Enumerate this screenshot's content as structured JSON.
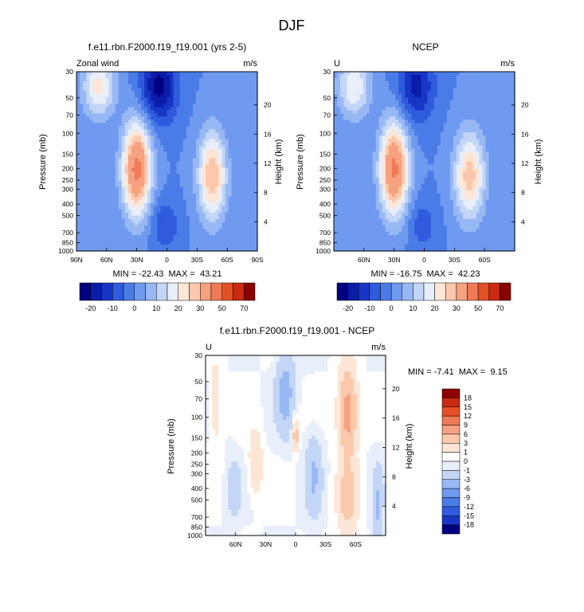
{
  "figure_title": "DJF",
  "chart_data": [
    {
      "type": "heatmap",
      "title": "f.e11.rbn.F2000.f19_f19.001 (yrs 2-5)",
      "corner_left": "Zonal wind",
      "corner_right": "m/s",
      "ylabel": "Pressure (mb)",
      "ylabel_right": "Height (km)",
      "x_ticks": [
        "90N",
        "60N",
        "30N",
        "0",
        "30S",
        "60S",
        "90S"
      ],
      "x_tick_values": [
        90,
        60,
        30,
        0,
        -30,
        -60,
        -90
      ],
      "xlim": [
        90,
        -90
      ],
      "y_ticks": [
        "30",
        "50",
        "70",
        "100",
        "150",
        "200",
        "250",
        "300",
        "400",
        "500",
        "700",
        "850",
        "1000"
      ],
      "y_tick_values": [
        30,
        50,
        70,
        100,
        150,
        200,
        250,
        300,
        400,
        500,
        700,
        850,
        1000
      ],
      "ylim": [
        1000,
        30
      ],
      "y_scale": "log",
      "height_ticks": [
        "4",
        "8",
        "12",
        "16",
        "20"
      ],
      "height_tick_values": [
        4,
        8,
        12,
        16,
        20
      ],
      "stats": "MIN = -22.43  MAX =  43.21",
      "min": -22.43,
      "max": 43.21,
      "colorbar": {
        "orientation": "horizontal",
        "labels": [
          "-20",
          "-10",
          "0",
          "10",
          "20",
          "30",
          "50",
          "70"
        ],
        "levels": [
          -20,
          -15,
          -10,
          -5,
          0,
          5,
          10,
          15,
          20,
          25,
          30,
          40,
          50,
          60,
          70
        ],
        "colors": [
          "#000080",
          "#0a1ca8",
          "#1836c6",
          "#2f5bdc",
          "#4a7ce8",
          "#6f9af0",
          "#98b8f4",
          "#c3d6f7",
          "#e8effb",
          "#fde6d6",
          "#fbc8ab",
          "#f6a17f",
          "#f07a55",
          "#e55026",
          "#c92a10",
          "#8b0000"
        ]
      },
      "fields": {
        "jets": [
          {
            "lat": 30,
            "p": 200,
            "value": 43,
            "lat_width": 14,
            "p_depth": 0.9
          },
          {
            "lat": -45,
            "p": 230,
            "value": 30,
            "lat_width": 14,
            "p_depth": 0.85
          },
          {
            "lat": 68,
            "p": 40,
            "value": 22,
            "lat_width": 16,
            "p_depth": 0.6
          }
        ],
        "easterlies": [
          {
            "lat": 8,
            "p": 40,
            "value": -22,
            "lat_width": 18,
            "p_depth": 0.7
          },
          {
            "lat": 2,
            "p": 600,
            "value": -10,
            "lat_width": 14,
            "p_depth": 0.5
          }
        ]
      }
    },
    {
      "type": "heatmap",
      "title": "NCEP",
      "corner_left": "U",
      "corner_right": "m/s",
      "ylabel": "Pressure (mb)",
      "ylabel_right": "Height (km)",
      "x_ticks": [
        "60N",
        "30N",
        "0",
        "30S",
        "60S"
      ],
      "x_tick_values": [
        60,
        30,
        0,
        -30,
        -60
      ],
      "xlim": [
        90,
        -90
      ],
      "y_ticks": [
        "30",
        "50",
        "70",
        "100",
        "150",
        "200",
        "250",
        "300",
        "400",
        "500",
        "700",
        "850",
        "1000"
      ],
      "y_tick_values": [
        30,
        50,
        70,
        100,
        150,
        200,
        250,
        300,
        400,
        500,
        700,
        850,
        1000
      ],
      "ylim": [
        1000,
        30
      ],
      "y_scale": "log",
      "height_ticks": [
        "4",
        "8",
        "12",
        "16",
        "20"
      ],
      "height_tick_values": [
        4,
        8,
        12,
        16,
        20
      ],
      "stats": "MIN = -16.75  MAX =  42.23",
      "min": -16.75,
      "max": 42.23,
      "colorbar": {
        "orientation": "horizontal",
        "labels": [
          "-20",
          "-10",
          "0",
          "10",
          "20",
          "30",
          "50",
          "70"
        ],
        "levels": [
          -20,
          -15,
          -10,
          -5,
          0,
          5,
          10,
          15,
          20,
          25,
          30,
          40,
          50,
          60,
          70
        ],
        "colors": [
          "#000080",
          "#0a1ca8",
          "#1836c6",
          "#2f5bdc",
          "#4a7ce8",
          "#6f9af0",
          "#98b8f4",
          "#c3d6f7",
          "#e8effb",
          "#fde6d6",
          "#fbc8ab",
          "#f6a17f",
          "#f07a55",
          "#e55026",
          "#c92a10",
          "#8b0000"
        ]
      },
      "fields": {
        "jets": [
          {
            "lat": 30,
            "p": 200,
            "value": 42,
            "lat_width": 14,
            "p_depth": 0.9
          },
          {
            "lat": -45,
            "p": 230,
            "value": 28,
            "lat_width": 15,
            "p_depth": 0.85
          },
          {
            "lat": 70,
            "p": 40,
            "value": 20,
            "lat_width": 16,
            "p_depth": 0.6
          }
        ],
        "easterlies": [
          {
            "lat": 8,
            "p": 40,
            "value": -17,
            "lat_width": 18,
            "p_depth": 0.7
          },
          {
            "lat": 2,
            "p": 600,
            "value": -8,
            "lat_width": 14,
            "p_depth": 0.5
          }
        ]
      }
    },
    {
      "type": "heatmap",
      "title": "f.e11.rbn.F2000.f19_f19.001 - NCEP",
      "corner_left": "U",
      "corner_right": "m/s",
      "ylabel": "Pressure (mb)",
      "ylabel_right": "Height (km)",
      "x_ticks": [
        "60N",
        "30N",
        "0",
        "30S",
        "60S"
      ],
      "x_tick_values": [
        60,
        30,
        0,
        -30,
        -60
      ],
      "xlim": [
        90,
        -90
      ],
      "y_ticks": [
        "30",
        "50",
        "70",
        "100",
        "150",
        "200",
        "250",
        "300",
        "400",
        "500",
        "700",
        "850",
        "1000"
      ],
      "y_tick_values": [
        30,
        50,
        70,
        100,
        150,
        200,
        250,
        300,
        400,
        500,
        700,
        850,
        1000
      ],
      "ylim": [
        1000,
        30
      ],
      "y_scale": "log",
      "height_ticks": [
        "4",
        "8",
        "12",
        "16",
        "20"
      ],
      "height_tick_values": [
        4,
        8,
        12,
        16,
        20
      ],
      "stats": "MIN = -7.41  MAX =  9.15",
      "min": -7.41,
      "max": 9.15,
      "colorbar": {
        "orientation": "vertical",
        "labels": [
          "18",
          "15",
          "12",
          "9",
          "6",
          "3",
          "1",
          "0",
          "-1",
          "-3",
          "-6",
          "-9",
          "-12",
          "-15",
          "-18"
        ],
        "levels": [
          18,
          15,
          12,
          9,
          6,
          3,
          1,
          0,
          -1,
          -3,
          -6,
          -9,
          -12,
          -15,
          -18
        ],
        "colors": [
          "#8b0000",
          "#c92a10",
          "#e55026",
          "#f07a55",
          "#f6a17f",
          "#fbc8ab",
          "#fde6d6",
          "#ffffff",
          "#e8effb",
          "#c3d6f7",
          "#98b8f4",
          "#6f9af0",
          "#4a7ce8",
          "#2f5bdc",
          "#1836c6",
          "#000080"
        ]
      },
      "fields": {
        "anomalies": [
          {
            "lat": -52,
            "p": 90,
            "value": 8,
            "lat_width": 9,
            "p_depth": 0.8
          },
          {
            "lat": -52,
            "p": 500,
            "value": 4,
            "lat_width": 10,
            "p_depth": 0.7
          },
          {
            "lat": 40,
            "p": 250,
            "value": 3,
            "lat_width": 7,
            "p_depth": 0.6
          },
          {
            "lat": 80,
            "p": 80,
            "value": 2,
            "lat_width": 6,
            "p_depth": 0.9
          },
          {
            "lat": 0,
            "p": 140,
            "value": 5,
            "lat_width": 3,
            "p_depth": 0.3
          },
          {
            "lat": 10,
            "p": 60,
            "value": -4,
            "lat_width": 9,
            "p_depth": 0.8
          },
          {
            "lat": -18,
            "p": 300,
            "value": -3,
            "lat_width": 8,
            "p_depth": 0.8
          },
          {
            "lat": 62,
            "p": 400,
            "value": -2,
            "lat_width": 7,
            "p_depth": 0.6
          },
          {
            "lat": -82,
            "p": 600,
            "value": -3,
            "lat_width": 5,
            "p_depth": 0.8
          }
        ]
      }
    }
  ]
}
